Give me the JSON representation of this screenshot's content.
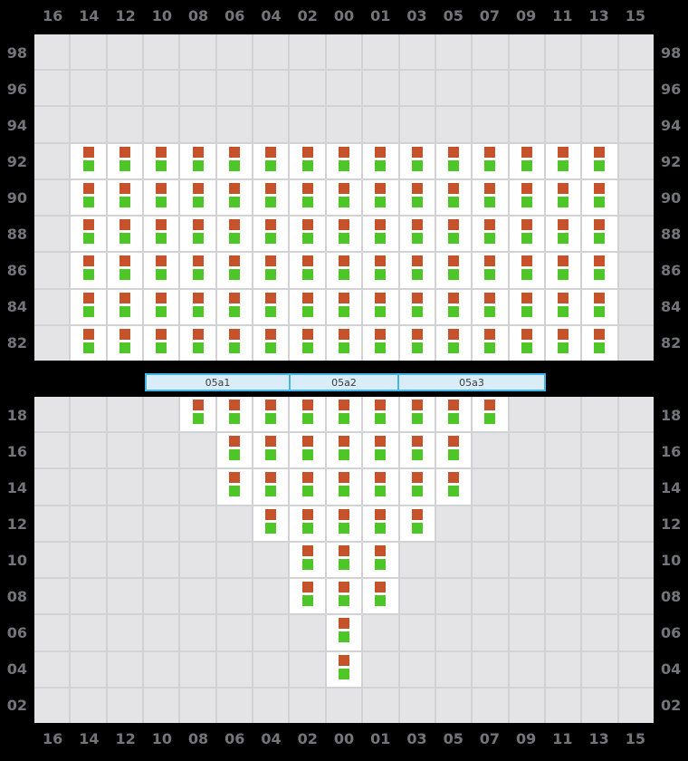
{
  "columns": [
    "16",
    "14",
    "12",
    "10",
    "08",
    "06",
    "04",
    "02",
    "00",
    "01",
    "03",
    "05",
    "07",
    "09",
    "11",
    "13",
    "15"
  ],
  "sections": [
    {
      "label": "05a1"
    },
    {
      "label": "05a2"
    },
    {
      "label": "05a3"
    }
  ],
  "top_panel": {
    "rows": [
      {
        "label": "98",
        "seats": []
      },
      {
        "label": "96",
        "seats": []
      },
      {
        "label": "94",
        "seats": []
      },
      {
        "label": "92",
        "seats": [
          "14",
          "12",
          "10",
          "08",
          "06",
          "04",
          "02",
          "00",
          "01",
          "03",
          "05",
          "07",
          "09",
          "11",
          "13"
        ]
      },
      {
        "label": "90",
        "seats": [
          "14",
          "12",
          "10",
          "08",
          "06",
          "04",
          "02",
          "00",
          "01",
          "03",
          "05",
          "07",
          "09",
          "11",
          "13"
        ]
      },
      {
        "label": "88",
        "seats": [
          "14",
          "12",
          "10",
          "08",
          "06",
          "04",
          "02",
          "00",
          "01",
          "03",
          "05",
          "07",
          "09",
          "11",
          "13"
        ]
      },
      {
        "label": "86",
        "seats": [
          "14",
          "12",
          "10",
          "08",
          "06",
          "04",
          "02",
          "00",
          "01",
          "03",
          "05",
          "07",
          "09",
          "11",
          "13"
        ]
      },
      {
        "label": "84",
        "seats": [
          "14",
          "12",
          "10",
          "08",
          "06",
          "04",
          "02",
          "00",
          "01",
          "03",
          "05",
          "07",
          "09",
          "11",
          "13"
        ]
      },
      {
        "label": "82",
        "seats": [
          "14",
          "12",
          "10",
          "08",
          "06",
          "04",
          "02",
          "00",
          "01",
          "03",
          "05",
          "07",
          "09",
          "11",
          "13"
        ]
      }
    ]
  },
  "bottom_panel": {
    "rows": [
      {
        "label": "18",
        "seats": [
          "08",
          "06",
          "04",
          "02",
          "00",
          "01",
          "03",
          "05",
          "07"
        ]
      },
      {
        "label": "16",
        "seats": [
          "06",
          "04",
          "02",
          "00",
          "01",
          "03",
          "05"
        ]
      },
      {
        "label": "14",
        "seats": [
          "06",
          "04",
          "02",
          "00",
          "01",
          "03",
          "05"
        ]
      },
      {
        "label": "12",
        "seats": [
          "04",
          "02",
          "00",
          "01",
          "03"
        ]
      },
      {
        "label": "10",
        "seats": [
          "02",
          "00",
          "01"
        ]
      },
      {
        "label": "08",
        "seats": [
          "02",
          "00",
          "01"
        ]
      },
      {
        "label": "06",
        "seats": [
          "00"
        ]
      },
      {
        "label": "04",
        "seats": [
          "00"
        ]
      },
      {
        "label": "02",
        "seats": []
      }
    ]
  },
  "colors": {
    "background": "#000000",
    "empty_cell": "#e4e4e6",
    "grid_line": "#d2d2d5",
    "seat_cell": "#ffffff",
    "seat_marker_top": "#c6522c",
    "seat_marker_bottom": "#4fc628",
    "section_fill": "#d9edf8",
    "section_border": "#42b6ea",
    "axis_label": "#74757b"
  }
}
